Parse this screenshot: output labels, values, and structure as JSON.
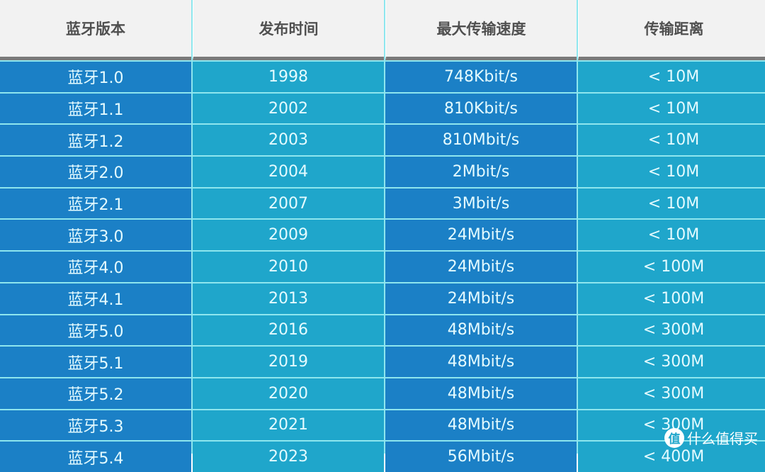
{
  "table": {
    "headers": [
      "蓝牙版本",
      "发布时间",
      "最大传输速度",
      "传输距离"
    ],
    "rows": [
      [
        "蓝牙1.0",
        "1998",
        "748Kbit/s",
        "< 10M"
      ],
      [
        "蓝牙1.1",
        "2002",
        "810Kbit/s",
        "< 10M"
      ],
      [
        "蓝牙1.2",
        "2003",
        "810Mbit/s",
        "< 10M"
      ],
      [
        "蓝牙2.0",
        "2004",
        "2Mbit/s",
        "< 10M"
      ],
      [
        "蓝牙2.1",
        "2007",
        "3Mbit/s",
        "< 10M"
      ],
      [
        "蓝牙3.0",
        "2009",
        "24Mbit/s",
        "< 10M"
      ],
      [
        "蓝牙4.0",
        "2010",
        "24Mbit/s",
        "< 100M"
      ],
      [
        "蓝牙4.1",
        "2013",
        "24Mbit/s",
        "< 100M"
      ],
      [
        "蓝牙5.0",
        "2016",
        "48Mbit/s",
        "< 300M"
      ],
      [
        "蓝牙5.1",
        "2019",
        "48Mbit/s",
        "< 300M"
      ],
      [
        "蓝牙5.2",
        "2020",
        "48Mbit/s",
        "< 300M"
      ],
      [
        "蓝牙5.3",
        "2021",
        "48Mbit/s",
        "< 300M"
      ],
      [
        "蓝牙5.4",
        "2023",
        "56Mbit/s",
        "< 400M"
      ]
    ]
  },
  "colors": {
    "header_bg": "#f2f2f2",
    "header_text": "#505050",
    "dark_cell": "#1b80c6",
    "light_cell": "#1fa6cb",
    "grid_line": "#8ee6ee"
  },
  "watermark": {
    "logo_glyph": "值",
    "text": "什么值得买"
  }
}
